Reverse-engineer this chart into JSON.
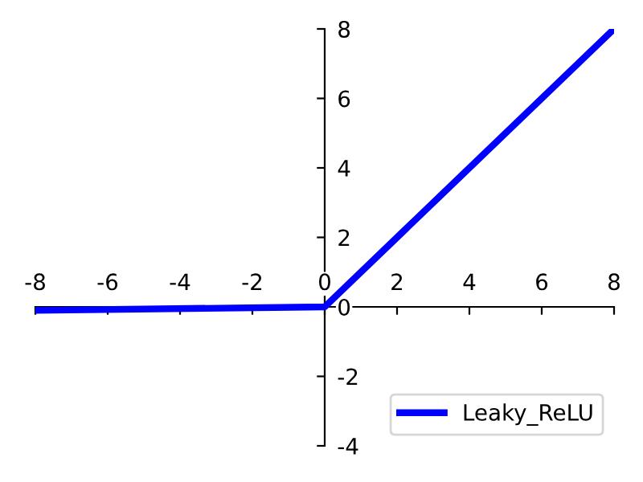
{
  "chart_data": {
    "type": "line",
    "x": [
      -8,
      0,
      8
    ],
    "series": [
      {
        "name": "Leaky_ReLU",
        "color": "#0000ff",
        "values": [
          -0.1,
          0,
          8
        ]
      }
    ],
    "xlim": [
      -8,
      8
    ],
    "ylim": [
      -4,
      8
    ],
    "xticks": [
      -8,
      -6,
      -4,
      -2,
      0,
      2,
      4,
      6,
      8
    ],
    "yticks": [
      -4,
      -2,
      0,
      2,
      4,
      6,
      8
    ],
    "grid": false,
    "legend": "bottom right",
    "marker": "none",
    "line_style": "solid"
  }
}
